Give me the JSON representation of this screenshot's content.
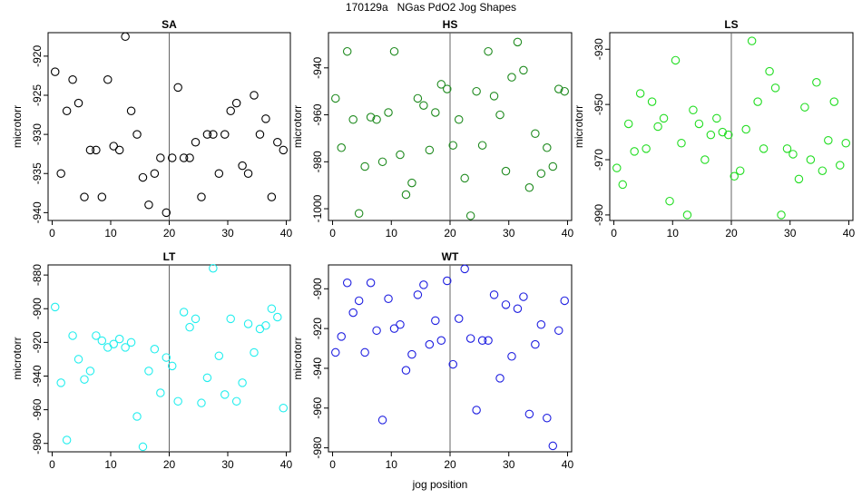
{
  "figure": {
    "title": "170129a   NGas PdO2 Jog Shapes",
    "xlabel": "jog position"
  },
  "chart_data": [
    {
      "type": "scatter",
      "title": "SA",
      "ylabel": "microtorr",
      "color": "#000000",
      "xlim": [
        0,
        40
      ],
      "ylim": [
        -941,
        -917
      ],
      "yticks": [
        -940,
        -935,
        -930,
        -925,
        -920
      ],
      "xticks": [
        0,
        10,
        20,
        30,
        40
      ],
      "vline": 20,
      "x": [
        0.5,
        1.5,
        2.5,
        3.5,
        4.5,
        5.5,
        6.5,
        7.5,
        8.5,
        9.5,
        10.5,
        11.5,
        12.5,
        13.5,
        14.5,
        15.5,
        16.5,
        17.5,
        18.5,
        19.5,
        20.5,
        21.5,
        22.5,
        23.5,
        24.5,
        25.5,
        26.5,
        27.5,
        28.5,
        29.5,
        30.5,
        31.5,
        32.5,
        33.5,
        34.5,
        35.5,
        36.5,
        37.5,
        38.5,
        39.5
      ],
      "y": [
        -922,
        -935,
        -927,
        -923,
        -926,
        -938,
        -932,
        -932,
        -938,
        -923,
        -931.5,
        -932,
        -917.5,
        -927,
        -930,
        -935.5,
        -939,
        -935,
        -933,
        -940,
        -933,
        -924,
        -933,
        -933,
        -931,
        -938,
        -930,
        -930,
        -935,
        -930,
        -927,
        -926,
        -934,
        -935,
        -925,
        -930,
        -928,
        -938,
        -931,
        -932
      ]
    },
    {
      "type": "scatter",
      "title": "HS",
      "ylabel": "microtorr",
      "color": "#1e8a1e",
      "xlim": [
        0,
        40
      ],
      "ylim": [
        -1005,
        -925
      ],
      "yticks": [
        -1000,
        -980,
        -960,
        -940
      ],
      "xticks": [
        0,
        10,
        20,
        30,
        40
      ],
      "vline": 20,
      "x": [
        0.5,
        1.5,
        2.5,
        3.5,
        4.5,
        5.5,
        6.5,
        7.5,
        8.5,
        9.5,
        10.5,
        11.5,
        12.5,
        13.5,
        14.5,
        15.5,
        16.5,
        17.5,
        18.5,
        19.5,
        20.5,
        21.5,
        22.5,
        23.5,
        24.5,
        25.5,
        26.5,
        27.5,
        28.5,
        29.5,
        30.5,
        31.5,
        32.5,
        33.5,
        34.5,
        35.5,
        36.5,
        37.5,
        38.5,
        39.5
      ],
      "y": [
        -953,
        -974,
        -933,
        -962,
        -1002,
        -982,
        -961,
        -962,
        -980,
        -959,
        -933,
        -977,
        -994,
        -989,
        -953,
        -956,
        -975,
        -959,
        -947,
        -949,
        -973,
        -962,
        -987,
        -1003,
        -950,
        -973,
        -933,
        -952,
        -960,
        -984,
        -944,
        -929,
        -941,
        -991,
        -968,
        -985,
        -974,
        -982,
        -949,
        -950
      ]
    },
    {
      "type": "scatter",
      "title": "LS",
      "ylabel": "microtorr",
      "color": "#22dd22",
      "xlim": [
        0,
        40
      ],
      "ylim": [
        -992,
        -924
      ],
      "yticks": [
        -990,
        -970,
        -950,
        -930
      ],
      "xticks": [
        0,
        10,
        20,
        30,
        40
      ],
      "vline": 20,
      "x": [
        0.5,
        1.5,
        2.5,
        3.5,
        4.5,
        5.5,
        6.5,
        7.5,
        8.5,
        9.5,
        10.5,
        11.5,
        12.5,
        13.5,
        14.5,
        15.5,
        16.5,
        17.5,
        18.5,
        19.5,
        20.5,
        21.5,
        22.5,
        23.5,
        24.5,
        25.5,
        26.5,
        27.5,
        28.5,
        29.5,
        30.5,
        31.5,
        32.5,
        33.5,
        34.5,
        35.5,
        36.5,
        37.5,
        38.5,
        39.5
      ],
      "y": [
        -973,
        -979,
        -957,
        -967,
        -946,
        -966,
        -949,
        -958,
        -955,
        -985,
        -934,
        -964,
        -990,
        -952,
        -957,
        -970,
        -961,
        -955,
        -960,
        -961,
        -976,
        -974,
        -959,
        -927,
        -949,
        -966,
        -938,
        -944,
        -990,
        -966,
        -968,
        -977,
        -951,
        -970,
        -942,
        -974,
        -963,
        -949,
        -972,
        -964
      ]
    },
    {
      "type": "scatter",
      "title": "LT",
      "ylabel": "microtorr",
      "color": "#22eeee",
      "xlim": [
        0,
        40
      ],
      "ylim": [
        -985,
        -874
      ],
      "yticks": [
        -980,
        -960,
        -940,
        -920,
        -900,
        -880
      ],
      "xticks": [
        0,
        10,
        20,
        30,
        40
      ],
      "vline": 20,
      "x": [
        0.5,
        1.5,
        2.5,
        3.5,
        4.5,
        5.5,
        6.5,
        7.5,
        8.5,
        9.5,
        10.5,
        11.5,
        12.5,
        13.5,
        14.5,
        15.5,
        16.5,
        17.5,
        18.5,
        19.5,
        20.5,
        21.5,
        22.5,
        23.5,
        24.5,
        25.5,
        26.5,
        27.5,
        28.5,
        29.5,
        30.5,
        31.5,
        32.5,
        33.5,
        34.5,
        35.5,
        36.5,
        37.5,
        38.5,
        39.5
      ],
      "y": [
        -899,
        -944,
        -978,
        -916,
        -930,
        -942,
        -937,
        -916,
        -919,
        -923,
        -921,
        -918,
        -923,
        -920,
        -964,
        -982,
        -937,
        -924,
        -950,
        -929,
        -934,
        -955,
        -902,
        -911,
        -906,
        -956,
        -941,
        -876,
        -928,
        -951,
        -906,
        -955,
        -944,
        -909,
        -926,
        -912,
        -910,
        -900,
        -905,
        -959
      ]
    },
    {
      "type": "scatter",
      "title": "WT",
      "ylabel": "microtorr",
      "color": "#1e1ee0",
      "xlim": [
        0,
        40
      ],
      "ylim": [
        -982,
        -888
      ],
      "yticks": [
        -980,
        -960,
        -940,
        -920,
        -900
      ],
      "xticks": [
        0,
        10,
        20,
        30,
        40
      ],
      "vline": 20,
      "x": [
        0.5,
        1.5,
        2.5,
        3.5,
        4.5,
        5.5,
        6.5,
        7.5,
        8.5,
        9.5,
        10.5,
        11.5,
        12.5,
        13.5,
        14.5,
        15.5,
        16.5,
        17.5,
        18.5,
        19.5,
        20.5,
        21.5,
        22.5,
        23.5,
        24.5,
        25.5,
        26.5,
        27.5,
        28.5,
        29.5,
        30.5,
        31.5,
        32.5,
        33.5,
        34.5,
        35.5,
        36.5,
        37.5,
        38.5,
        39.5
      ],
      "y": [
        -932,
        -924,
        -897,
        -912,
        -906,
        -932,
        -897,
        -921,
        -966,
        -905,
        -920,
        -918,
        -941,
        -933,
        -903,
        -898,
        -928,
        -916,
        -926,
        -896,
        -938,
        -915,
        -890,
        -925,
        -961,
        -926,
        -926,
        -903,
        -945,
        -908,
        -934,
        -910,
        -904,
        -963,
        -928,
        -918,
        -965,
        -979,
        -921,
        -906
      ]
    }
  ]
}
